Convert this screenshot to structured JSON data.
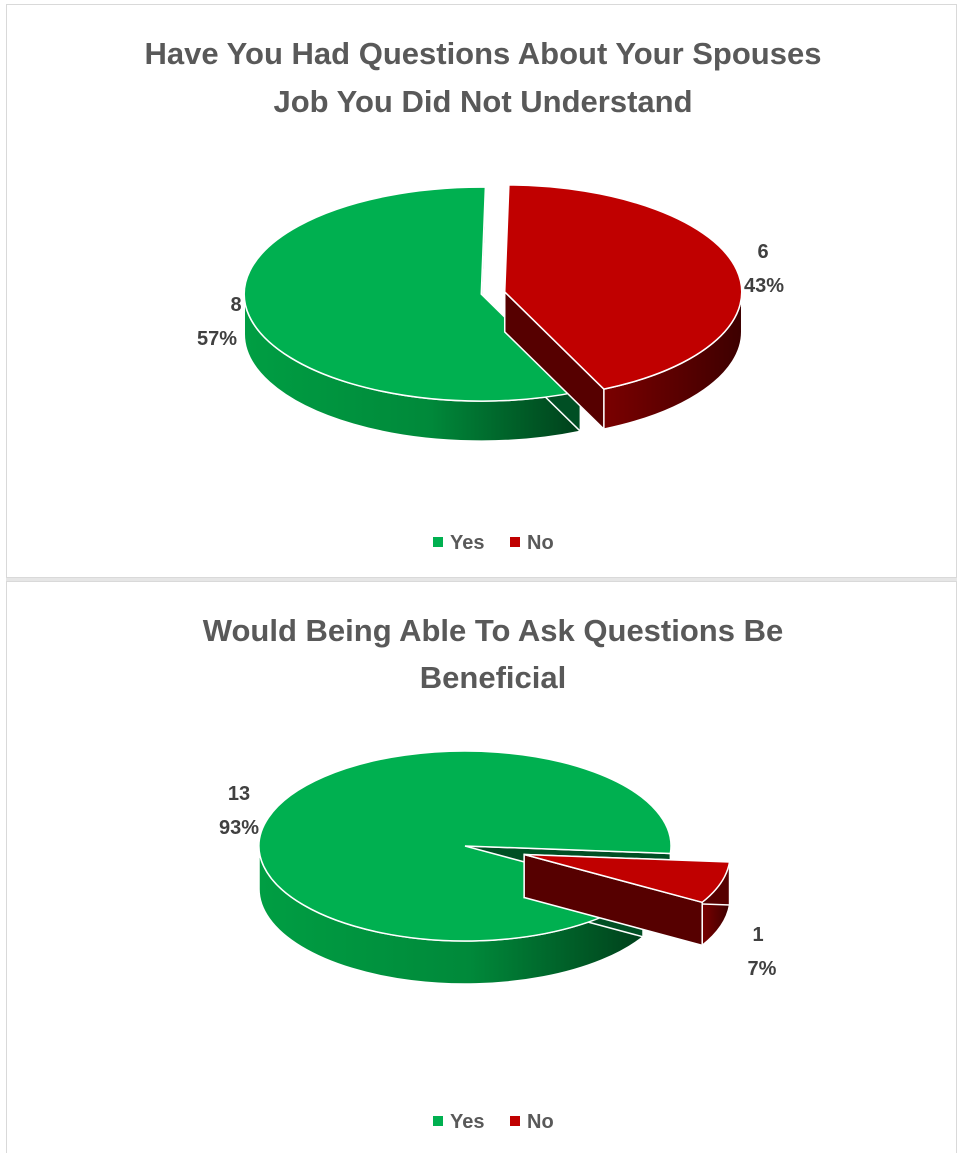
{
  "chart_data": [
    {
      "type": "pie",
      "title_lines": [
        "Have You Had Questions About Your Spouses",
        "Job You Did Not Understand"
      ],
      "categories": [
        "Yes",
        "No"
      ],
      "values": [
        8,
        6
      ],
      "percent_labels": [
        "57%",
        "43%"
      ],
      "value_labels": [
        "8",
        "6"
      ],
      "colors": [
        "#00b050",
        "#c00000"
      ],
      "exploded": [
        "Yes",
        "No"
      ],
      "legend_position": "bottom",
      "style": "3d"
    },
    {
      "type": "pie",
      "title_lines": [
        "Would Being Able To Ask Questions Be",
        "Beneficial"
      ],
      "categories": [
        "Yes",
        "No"
      ],
      "values": [
        13,
        1
      ],
      "percent_labels": [
        "93%",
        "7%"
      ],
      "value_labels": [
        "13",
        "1"
      ],
      "colors": [
        "#00b050",
        "#c00000"
      ],
      "exploded": [
        "No"
      ],
      "legend_position": "bottom",
      "style": "3d"
    }
  ]
}
